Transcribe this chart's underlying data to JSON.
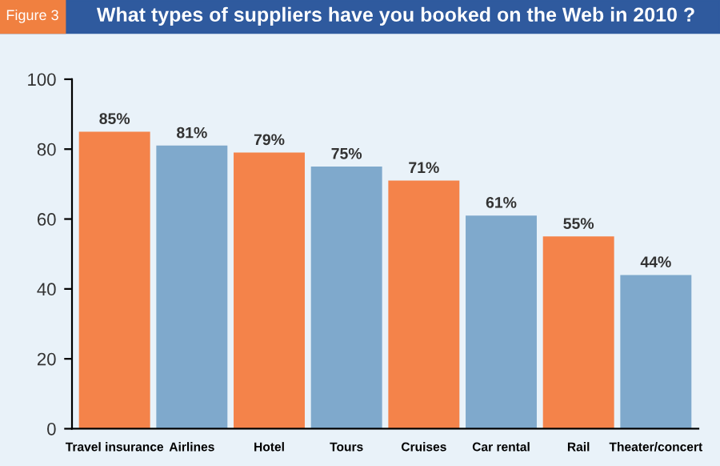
{
  "chart_data": {
    "type": "bar",
    "title": "What types of suppliers have you booked on the Web in 2010 ?",
    "annotations": [
      "Figure 3"
    ],
    "categories": [
      "Travel insurance",
      "Airlines",
      "Hotel",
      "Tours",
      "Cruises",
      "Car rental",
      "Rail",
      "Theater/concert"
    ],
    "values": [
      85,
      81,
      79,
      75,
      71,
      61,
      55,
      44
    ],
    "colors": [
      "#f4834a",
      "#7fa9cc",
      "#f4834a",
      "#7fa9cc",
      "#f4834a",
      "#7fa9cc",
      "#f4834a",
      "#7fa9cc"
    ],
    "value_labels": [
      "85%",
      "81%",
      "79%",
      "75%",
      "71%",
      "61%",
      "55%",
      "44%"
    ],
    "ylim": [
      0,
      100
    ],
    "yticks": [
      0,
      20,
      40,
      60,
      80,
      100
    ],
    "grid": false,
    "legend": false
  }
}
